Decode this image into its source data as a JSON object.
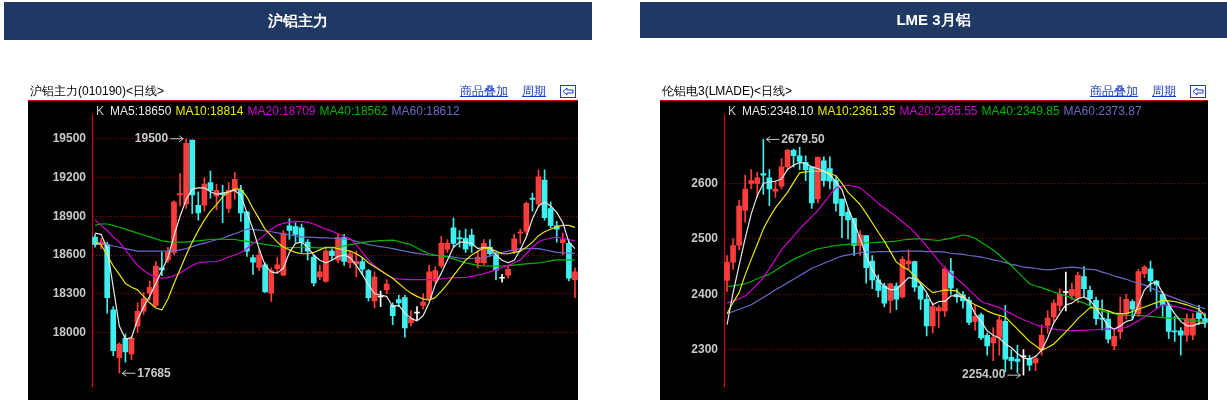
{
  "chart_data": [
    {
      "type": "candlestick",
      "title": "沪铝主力",
      "subtitle": "沪铝主力(010190)<日线>",
      "grid": "y",
      "tick_labels": "y",
      "marker": "none",
      "categories": [
        null,
        null,
        null,
        null,
        null,
        null,
        null,
        null,
        null,
        null,
        null,
        null,
        null,
        null,
        null,
        null,
        null,
        null,
        null,
        null,
        null,
        null,
        null,
        null,
        null,
        null,
        null,
        null,
        null,
        null,
        null,
        null,
        null,
        null,
        null,
        null,
        null,
        null,
        null,
        null,
        null,
        null,
        null,
        null,
        null,
        null,
        null,
        null,
        null,
        null,
        null,
        null,
        null,
        null,
        null,
        null,
        null,
        null,
        null,
        null,
        null,
        null,
        null,
        null,
        null,
        null,
        null,
        null,
        null,
        null,
        null,
        null,
        null,
        null,
        null,
        null,
        null,
        null,
        null,
        null
      ],
      "ylim": [
        17580,
        19690
      ],
      "yticks": [
        18000,
        18300,
        18600,
        18900,
        19200,
        19500
      ],
      "annotations": [
        "K",
        "商品叠加",
        "周期",
        "19500",
        "17685"
      ],
      "series": [
        {
          "type": "candlestick",
          "ohlc": [
            [
              18738,
              18760,
              18660,
              18680
            ],
            [
              18680,
              18730,
              18650,
              18700
            ],
            [
              18680,
              18700,
              18150,
              18270
            ],
            [
              18175,
              18200,
              17820,
              17860
            ],
            [
              17805,
              17920,
              17685,
              17910
            ],
            [
              17955,
              17990,
              17770,
              17850
            ],
            [
              17835,
              17970,
              17790,
              17955
            ],
            [
              18050,
              18230,
              18000,
              18165
            ],
            [
              18165,
              18310,
              18140,
              18260
            ],
            [
              18305,
              18400,
              18250,
              18350
            ],
            [
              18210,
              18550,
              18200,
              18515
            ],
            [
              18500,
              18620,
              18440,
              18485
            ],
            [
              18560,
              18660,
              18540,
              18620
            ],
            [
              18620,
              19020,
              18600,
              19010
            ],
            [
              19065,
              19230,
              18980,
              19075
            ],
            [
              18995,
              19500,
              18960,
              19465
            ],
            [
              19490,
              19490,
              18920,
              19065
            ],
            [
              18985,
              19090,
              18870,
              18925
            ],
            [
              18985,
              19200,
              18940,
              19150
            ],
            [
              19160,
              19250,
              19040,
              19100
            ],
            [
              19055,
              19150,
              18950,
              19100
            ],
            [
              19080,
              19140,
              18850,
              19068
            ],
            [
              18960,
              19160,
              18930,
              19100
            ],
            [
              19100,
              19240,
              19030,
              19185
            ],
            [
              19100,
              19140,
              18860,
              18925
            ],
            [
              18935,
              18935,
              18590,
              18630
            ],
            [
              18580,
              18600,
              18450,
              18545
            ],
            [
              18505,
              18640,
              18480,
              18600
            ],
            [
              18525,
              18540,
              18310,
              18315
            ],
            [
              18305,
              18500,
              18240,
              18480
            ],
            [
              18495,
              18580,
              18460,
              18525
            ],
            [
              18445,
              18790,
              18440,
              18770
            ],
            [
              18825,
              18880,
              18720,
              18790
            ],
            [
              18820,
              18850,
              18700,
              18760
            ],
            [
              18810,
              18840,
              18620,
              18700
            ],
            [
              18700,
              18720,
              18560,
              18630
            ],
            [
              18585,
              18600,
              18360,
              18385
            ],
            [
              18430,
              18520,
              18410,
              18470
            ],
            [
              18395,
              18660,
              18390,
              18630
            ],
            [
              18630,
              18650,
              18560,
              18595
            ],
            [
              18560,
              18760,
              18540,
              18735
            ],
            [
              18735,
              18760,
              18520,
              18550
            ],
            [
              18540,
              18630,
              18500,
              18610
            ],
            [
              18530,
              18630,
              18430,
              18550
            ],
            [
              18550,
              18580,
              18450,
              18490
            ],
            [
              18480,
              18490,
              18245,
              18270
            ],
            [
              18245,
              18470,
              18190,
              18430
            ],
            [
              18275,
              18320,
              18200,
              18275
            ],
            [
              18330,
              18410,
              18300,
              18375
            ],
            [
              18210,
              18230,
              18060,
              18130
            ],
            [
              18255,
              18290,
              18200,
              18230
            ],
            [
              18270,
              18290,
              17965,
              18035
            ],
            [
              18075,
              18170,
              18050,
              18110
            ],
            [
              18150,
              18200,
              18100,
              18150
            ],
            [
              18210,
              18300,
              18180,
              18235
            ],
            [
              18260,
              18520,
              18250,
              18470
            ],
            [
              18400,
              18510,
              18380,
              18480
            ],
            [
              18515,
              18745,
              18500,
              18690
            ],
            [
              18645,
              18720,
              18620,
              18690
            ],
            [
              18810,
              18885,
              18660,
              18690
            ],
            [
              18735,
              18790,
              18660,
              18725
            ],
            [
              18730,
              18800,
              18620,
              18645
            ],
            [
              18755,
              18800,
              18620,
              18670
            ],
            [
              18540,
              18630,
              18500,
              18585
            ],
            [
              18540,
              18720,
              18520,
              18690
            ],
            [
              18660,
              18720,
              18590,
              18610
            ],
            [
              18610,
              18620,
              18410,
              18480
            ],
            [
              18420,
              18450,
              18390,
              18420
            ],
            [
              18445,
              18520,
              18420,
              18490
            ],
            [
              18630,
              18760,
              18610,
              18725
            ],
            [
              18770,
              18800,
              18690,
              18775
            ],
            [
              18785,
              19010,
              18760,
              19000
            ],
            [
              19040,
              19080,
              18940,
              19030
            ],
            [
              18995,
              19260,
              18970,
              19205
            ],
            [
              19180,
              19260,
              18870,
              18890
            ],
            [
              18960,
              19010,
              18810,
              18830
            ],
            [
              18825,
              18860,
              18700,
              18800
            ],
            [
              18695,
              18770,
              18600,
              18720
            ],
            [
              18690,
              18710,
              18400,
              18420
            ],
            [
              18410,
              18500,
              18270,
              18470
            ]
          ]
        },
        {
          "type": "line",
          "name": "MA5:18650",
          "color": "#e8e8e8",
          "values": [
            18770,
            18760,
            18650,
            18350,
            18050,
            17950,
            17960,
            18100,
            18200,
            18280,
            18380,
            18480,
            18580,
            18750,
            18900,
            19030,
            19110,
            19120,
            19120,
            19090,
            19070,
            19080,
            19090,
            19100,
            19060,
            18930,
            18800,
            18650,
            18520,
            18470,
            18460,
            18500,
            18620,
            18690,
            18700,
            18660,
            18600,
            18560,
            18540,
            18560,
            18590,
            18600,
            18580,
            18520,
            18450,
            18370,
            18300,
            18290,
            18280,
            18200,
            18210,
            18150,
            18110,
            18090,
            18130,
            18230,
            18370,
            18460,
            18560,
            18660,
            18700,
            18700,
            18690,
            18650,
            18660,
            18660,
            18600,
            18560,
            18540,
            18560,
            18640,
            18740,
            18880,
            18980,
            19010,
            18980,
            18930,
            18850,
            18700,
            18650
          ]
        },
        {
          "type": "line",
          "name": "MA10:18814",
          "color": "#e8e800",
          "values": [
            18700,
            18680,
            18600,
            18515,
            18450,
            18380,
            18350,
            18330,
            18280,
            18230,
            18190,
            18175,
            18260,
            18380,
            18490,
            18600,
            18700,
            18790,
            18870,
            18940,
            18990,
            19050,
            19090,
            19110,
            19110,
            19050,
            18960,
            18880,
            18800,
            18750,
            18700,
            18660,
            18640,
            18620,
            18610,
            18610,
            18620,
            18640,
            18660,
            18660,
            18650,
            18640,
            18630,
            18610,
            18580,
            18540,
            18510,
            18480,
            18450,
            18420,
            18380,
            18340,
            18305,
            18280,
            18260,
            18250,
            18270,
            18320,
            18375,
            18440,
            18500,
            18560,
            18600,
            18630,
            18655,
            18650,
            18630,
            18610,
            18610,
            18620,
            18630,
            18660,
            18700,
            18750,
            18780,
            18800,
            18820,
            18830,
            18830,
            18814
          ]
        },
        {
          "type": "line",
          "name": "MA20:18709",
          "color": "#d000d0",
          "values": [
            18870,
            18830,
            18790,
            18740,
            18700,
            18640,
            18580,
            18520,
            18480,
            18450,
            18430,
            18420,
            18425,
            18440,
            18460,
            18490,
            18520,
            18540,
            18545,
            18548,
            18550,
            18565,
            18585,
            18600,
            18620,
            18650,
            18690,
            18720,
            18760,
            18800,
            18830,
            18845,
            18855,
            18860,
            18858,
            18855,
            18840,
            18820,
            18800,
            18785,
            18765,
            18745,
            18727,
            18680,
            18620,
            18562,
            18520,
            18480,
            18450,
            18422,
            18415,
            18412,
            18410,
            18410,
            18410,
            18410,
            18412,
            18416,
            18422,
            18424,
            18425,
            18426,
            18435,
            18445,
            18455,
            18470,
            18485,
            18503,
            18520,
            18540,
            18562,
            18610,
            18660,
            18703,
            18720,
            18730,
            18738,
            18730,
            18720,
            18709
          ]
        },
        {
          "type": "line",
          "name": "MA40:18562",
          "color": "#00b400",
          "values": [
            18830,
            18840,
            18840,
            18830,
            18815,
            18800,
            18785,
            18770,
            18755,
            18740,
            18725,
            18710,
            18703,
            18700,
            18700,
            18700,
            18705,
            18710,
            18715,
            18720,
            18722,
            18722,
            18720,
            18720,
            18712,
            18705,
            18698,
            18690,
            18682,
            18675,
            18668,
            18660,
            18658,
            18658,
            18660,
            18660,
            18658,
            18656,
            18655,
            18656,
            18662,
            18670,
            18680,
            18688,
            18696,
            18703,
            18708,
            18712,
            18714,
            18715,
            18705,
            18692,
            18680,
            18655,
            18630,
            18610,
            18600,
            18592,
            18586,
            18570,
            18555,
            18539,
            18530,
            18520,
            18515,
            18514,
            18514,
            18515,
            18518,
            18522,
            18527,
            18532,
            18536,
            18539,
            18546,
            18554,
            18562,
            18562,
            18562,
            18562
          ]
        },
        {
          "type": "line",
          "name": "MA60:18612",
          "color": "#6a6ac8",
          "values": [
            18700,
            18690,
            18680,
            18670,
            18660,
            18650,
            18640,
            18630,
            18630,
            18630,
            18630,
            18630,
            18630,
            18630,
            18640,
            18650,
            18665,
            18680,
            18692,
            18705,
            18718,
            18730,
            18748,
            18765,
            18782,
            18800,
            18798,
            18792,
            18786,
            18780,
            18772,
            18764,
            18756,
            18748,
            18740,
            18738,
            18736,
            18734,
            18732,
            18730,
            18727,
            18724,
            18720,
            18706,
            18693,
            18680,
            18672,
            18665,
            18658,
            18650,
            18640,
            18630,
            18620,
            18613,
            18606,
            18600,
            18597,
            18593,
            18590,
            18583,
            18577,
            18570,
            18573,
            18577,
            18580,
            18593,
            18607,
            18620,
            18630,
            18640,
            18650,
            18650,
            18650,
            18650,
            18640,
            18630,
            18620,
            18617,
            18614,
            18612
          ]
        }
      ]
    },
    {
      "type": "candlestick",
      "title": "LME 3月铝",
      "subtitle": "伦铝电3(LMADE)<日线>",
      "grid": "y",
      "tick_labels": "y",
      "marker": "none",
      "categories": [
        null,
        null,
        null,
        null,
        null,
        null,
        null,
        null,
        null,
        null,
        null,
        null,
        null,
        null,
        null,
        null,
        null,
        null,
        null,
        null,
        null,
        null,
        null,
        null,
        null,
        null,
        null,
        null,
        null,
        null,
        null,
        null,
        null,
        null,
        null,
        null,
        null,
        null,
        null,
        null,
        null,
        null,
        null,
        null,
        null,
        null,
        null,
        null,
        null,
        null,
        null,
        null,
        null,
        null,
        null,
        null,
        null,
        null,
        null,
        null,
        null,
        null,
        null,
        null,
        null,
        null,
        null,
        null,
        null,
        null,
        null,
        null,
        null,
        null,
        null,
        null,
        null,
        null,
        null,
        null
      ],
      "ylim": [
        2233,
        2725
      ],
      "yticks": [
        2300,
        2400,
        2500,
        2600
      ],
      "annotations": [
        "K",
        "商品叠加",
        "周期",
        "2679.50",
        "2254.00"
      ],
      "series": [
        {
          "type": "candlestick",
          "ohlc": [
            [
              2425,
              2470,
              2405,
              2458
            ],
            [
              2458,
              2500,
              2445,
              2488
            ],
            [
              2488,
              2570,
              2480,
              2559
            ],
            [
              2552,
              2615,
              2530,
              2590
            ],
            [
              2600,
              2625,
              2590,
              2605
            ],
            [
              2600,
              2620,
              2575,
              2610
            ],
            [
              2618,
              2679.5,
              2580,
              2615
            ],
            [
              2610,
              2625,
              2560,
              2590
            ],
            [
              2586,
              2605,
              2575,
              2590
            ],
            [
              2595,
              2645,
              2590,
              2630
            ],
            [
              2630,
              2662,
              2625,
              2660
            ],
            [
              2660,
              2662,
              2630,
              2650
            ],
            [
              2650,
              2665,
              2625,
              2640
            ],
            [
              2638,
              2650,
              2605,
              2625
            ],
            [
              2630,
              2630,
              2555,
              2565
            ],
            [
              2572,
              2648,
              2565,
              2647
            ],
            [
              2641,
              2648,
              2595,
              2605
            ],
            [
              2627,
              2648,
              2590,
              2604
            ],
            [
              2606,
              2612,
              2550,
              2564
            ],
            [
              2572,
              2572,
              2502,
              2542
            ],
            [
              2548,
              2555,
              2500,
              2534
            ],
            [
              2537,
              2537,
              2470,
              2488
            ],
            [
              2488,
              2515,
              2470,
              2507
            ],
            [
              2506,
              2506,
              2420,
              2448
            ],
            [
              2460,
              2470,
              2410,
              2426
            ],
            [
              2426,
              2435,
              2395,
              2407
            ],
            [
              2415,
              2420,
              2377,
              2384
            ],
            [
              2389,
              2420,
              2367,
              2419
            ],
            [
              2415,
              2420,
              2372,
              2391
            ],
            [
              2395,
              2468,
              2393,
              2463
            ],
            [
              2455,
              2480,
              2445,
              2460
            ],
            [
              2459,
              2460,
              2405,
              2413
            ],
            [
              2415,
              2420,
              2372,
              2391
            ],
            [
              2391,
              2400,
              2325,
              2343
            ],
            [
              2343,
              2385,
              2330,
              2378
            ],
            [
              2370,
              2380,
              2340,
              2376
            ],
            [
              2370,
              2450,
              2360,
              2446
            ],
            [
              2442,
              2465,
              2400,
              2411
            ],
            [
              2400,
              2410,
              2385,
              2395
            ],
            [
              2399,
              2405,
              2375,
              2388
            ],
            [
              2389,
              2395,
              2345,
              2349
            ],
            [
              2351,
              2380,
              2335,
              2360
            ],
            [
              2363,
              2366,
              2318,
              2321
            ],
            [
              2326,
              2330,
              2290,
              2307
            ],
            [
              2312,
              2340,
              2280,
              2322
            ],
            [
              2321,
              2360,
              2290,
              2354
            ],
            [
              2351,
              2380,
              2260,
              2283
            ],
            [
              2286,
              2300,
              2265,
              2280
            ],
            [
              2283,
              2308,
              2260,
              2279
            ],
            [
              2287,
              2300,
              2254,
              2287
            ],
            [
              2284,
              2290,
              2262,
              2272
            ],
            [
              2276,
              2290,
              2262,
              2284
            ],
            [
              2299,
              2345,
              2290,
              2326
            ],
            [
              2344,
              2370,
              2330,
              2357
            ],
            [
              2359,
              2390,
              2350,
              2384
            ],
            [
              2380,
              2410,
              2370,
              2400
            ],
            [
              2403,
              2440,
              2370,
              2403
            ],
            [
              2397,
              2420,
              2390,
              2409
            ],
            [
              2393,
              2440,
              2385,
              2434
            ],
            [
              2432,
              2450,
              2395,
              2410
            ],
            [
              2407,
              2415,
              2380,
              2392
            ],
            [
              2389,
              2395,
              2345,
              2356
            ],
            [
              2357,
              2390,
              2335,
              2355
            ],
            [
              2355,
              2370,
              2312,
              2319
            ],
            [
              2307,
              2335,
              2300,
              2324
            ],
            [
              2332,
              2395,
              2320,
              2365
            ],
            [
              2365,
              2400,
              2355,
              2391
            ],
            [
              2387,
              2390,
              2355,
              2373
            ],
            [
              2365,
              2445,
              2360,
              2441
            ],
            [
              2437,
              2452,
              2430,
              2449
            ],
            [
              2446,
              2460,
              2405,
              2424
            ],
            [
              2424,
              2425,
              2375,
              2417
            ],
            [
              2400,
              2405,
              2360,
              2381
            ],
            [
              2381,
              2385,
              2320,
              2333
            ],
            [
              2334,
              2360,
              2315,
              2332
            ],
            [
              2334,
              2340,
              2290,
              2326
            ],
            [
              2326,
              2365,
              2315,
              2356
            ],
            [
              2326,
              2365,
              2318,
              2356
            ],
            [
              2367,
              2380,
              2345,
              2356
            ],
            [
              2356,
              2365,
              2340,
              2349
            ]
          ]
        },
        {
          "type": "line",
          "name": "MA5:2348.10",
          "color": "#e8e8e8",
          "values": [
            2345,
            2403,
            2452,
            2501,
            2545,
            2578,
            2600,
            2603,
            2604,
            2608,
            2625,
            2633,
            2638,
            2636,
            2630,
            2627,
            2622,
            2616,
            2603,
            2589,
            2556,
            2529,
            2501,
            2469,
            2444,
            2425,
            2414,
            2408,
            2409,
            2419,
            2430,
            2428,
            2419,
            2403,
            2381,
            2387,
            2387,
            2397,
            2397,
            2395,
            2387,
            2365,
            2351,
            2334,
            2326,
            2321,
            2310,
            2304,
            2293,
            2285,
            2283,
            2288,
            2299,
            2321,
            2348,
            2365,
            2381,
            2384,
            2392,
            2395,
            2389,
            2376,
            2359,
            2343,
            2337,
            2343,
            2351,
            2354,
            2381,
            2408,
            2419,
            2422,
            2403,
            2381,
            2365,
            2351,
            2343,
            2343,
            2348,
            2348
          ]
        },
        {
          "type": "line",
          "name": "MA10:2361.35",
          "color": "#e8e800",
          "values": [
            2365,
            2385,
            2403,
            2435,
            2463,
            2490,
            2518,
            2538,
            2556,
            2570,
            2584,
            2602,
            2619,
            2621,
            2622,
            2622,
            2622,
            2618,
            2614,
            2600,
            2584,
            2573,
            2562,
            2546,
            2529,
            2512,
            2496,
            2477,
            2458,
            2450,
            2444,
            2433,
            2422,
            2412,
            2403,
            2405,
            2408,
            2407,
            2406,
            2396,
            2387,
            2381,
            2376,
            2370,
            2365,
            2362,
            2359,
            2348,
            2337,
            2326,
            2315,
            2307,
            2299,
            2304,
            2310,
            2321,
            2332,
            2344,
            2356,
            2366,
            2376,
            2375,
            2373,
            2370,
            2366,
            2365,
            2365,
            2369,
            2373,
            2377,
            2381,
            2385,
            2389,
            2388,
            2387,
            2384,
            2381,
            2377,
            2373,
            2361
          ]
        },
        {
          "type": "line",
          "name": "MA20:2365.55",
          "color": "#d000d0",
          "values": [
            2384,
            2388,
            2392,
            2397,
            2407,
            2418,
            2430,
            2446,
            2463,
            2480,
            2493,
            2505,
            2518,
            2529,
            2540,
            2551,
            2565,
            2579,
            2592,
            2595,
            2597,
            2595,
            2592,
            2583,
            2574,
            2564,
            2556,
            2548,
            2540,
            2531,
            2522,
            2512,
            2499,
            2487,
            2474,
            2460,
            2447,
            2438,
            2428,
            2419,
            2408,
            2398,
            2387,
            2383,
            2380,
            2376,
            2370,
            2365,
            2359,
            2354,
            2350,
            2345,
            2342,
            2340,
            2337,
            2336,
            2335,
            2334,
            2335,
            2335,
            2336,
            2336,
            2337,
            2337,
            2338,
            2339,
            2340,
            2346,
            2352,
            2359,
            2366,
            2374,
            2381,
            2380,
            2378,
            2376,
            2373,
            2370,
            2368,
            2366
          ]
        },
        {
          "type": "line",
          "name": "MA40:2349.85",
          "color": "#00b400",
          "values": [
            2414,
            2415,
            2417,
            2419,
            2423,
            2428,
            2432,
            2436,
            2443,
            2450,
            2457,
            2463,
            2468,
            2473,
            2478,
            2482,
            2484,
            2486,
            2488,
            2489,
            2490,
            2491,
            2492,
            2493,
            2493,
            2494,
            2494,
            2495,
            2496,
            2498,
            2499,
            2500,
            2500,
            2499,
            2498,
            2497,
            2499,
            2501,
            2504,
            2507,
            2505,
            2501,
            2494,
            2487,
            2480,
            2471,
            2461,
            2452,
            2441,
            2430,
            2419,
            2415,
            2412,
            2408,
            2404,
            2401,
            2397,
            2393,
            2388,
            2384,
            2379,
            2375,
            2370,
            2367,
            2365,
            2362,
            2362,
            2362,
            2362,
            2361,
            2360,
            2359,
            2358,
            2357,
            2357,
            2356,
            2354,
            2353,
            2351,
            2350
          ]
        },
        {
          "type": "line",
          "name": "MA60:2373.87",
          "color": "#6a6ac8",
          "values": [
            2365,
            2369,
            2373,
            2377,
            2381,
            2388,
            2394,
            2401,
            2408,
            2414,
            2421,
            2427,
            2434,
            2440,
            2447,
            2451,
            2456,
            2460,
            2465,
            2469,
            2471,
            2473,
            2475,
            2476,
            2476,
            2477,
            2477,
            2477,
            2477,
            2478,
            2478,
            2478,
            2478,
            2477,
            2477,
            2477,
            2476,
            2474,
            2473,
            2472,
            2470,
            2469,
            2467,
            2465,
            2462,
            2460,
            2457,
            2454,
            2452,
            2449,
            2448,
            2447,
            2445,
            2444,
            2445,
            2447,
            2448,
            2449,
            2448,
            2446,
            2445,
            2444,
            2440,
            2437,
            2433,
            2430,
            2427,
            2423,
            2420,
            2417,
            2412,
            2407,
            2402,
            2397,
            2393,
            2389,
            2385,
            2381,
            2377,
            2374
          ]
        }
      ]
    }
  ]
}
